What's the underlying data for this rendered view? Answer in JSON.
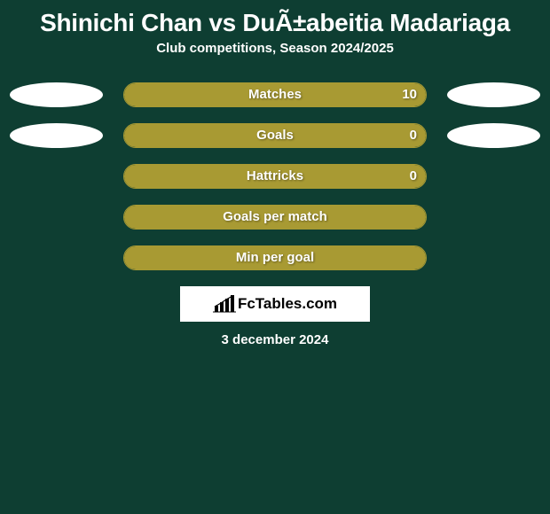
{
  "page": {
    "background_color": "#0e3e32",
    "title": "Shinichi Chan vs DuÃ±abeitia Madariaga",
    "title_color": "#ffffff",
    "title_fontsize": 28,
    "subtitle": "Club competitions, Season 2024/2025",
    "subtitle_color": "#ffffff",
    "subtitle_fontsize": 15,
    "date": "3 december 2024",
    "date_color": "#ffffff",
    "date_fontsize": 15,
    "logo_text": "FcTables.com",
    "logo_bg": "#ffffff",
    "logo_text_color": "#000000"
  },
  "bar_style": {
    "track_width": 342,
    "track_height": 28,
    "border_color": "#a89a33",
    "fill_color": "#a89a33",
    "border_radius": 14,
    "label_color": "#ffffff",
    "label_fontsize": 15
  },
  "ellipse_style": {
    "width": 105,
    "height": 28,
    "color": "#ffffff"
  },
  "stats": [
    {
      "label": "Matches",
      "value": "10",
      "fill_pct": 100,
      "left_ellipse": true,
      "right_ellipse": true
    },
    {
      "label": "Goals",
      "value": "0",
      "fill_pct": 100,
      "left_ellipse": true,
      "right_ellipse": true
    },
    {
      "label": "Hattricks",
      "value": "0",
      "fill_pct": 100,
      "left_ellipse": false,
      "right_ellipse": false
    },
    {
      "label": "Goals per match",
      "value": "",
      "fill_pct": 100,
      "left_ellipse": false,
      "right_ellipse": false
    },
    {
      "label": "Min per goal",
      "value": "",
      "fill_pct": 100,
      "left_ellipse": false,
      "right_ellipse": false
    }
  ]
}
